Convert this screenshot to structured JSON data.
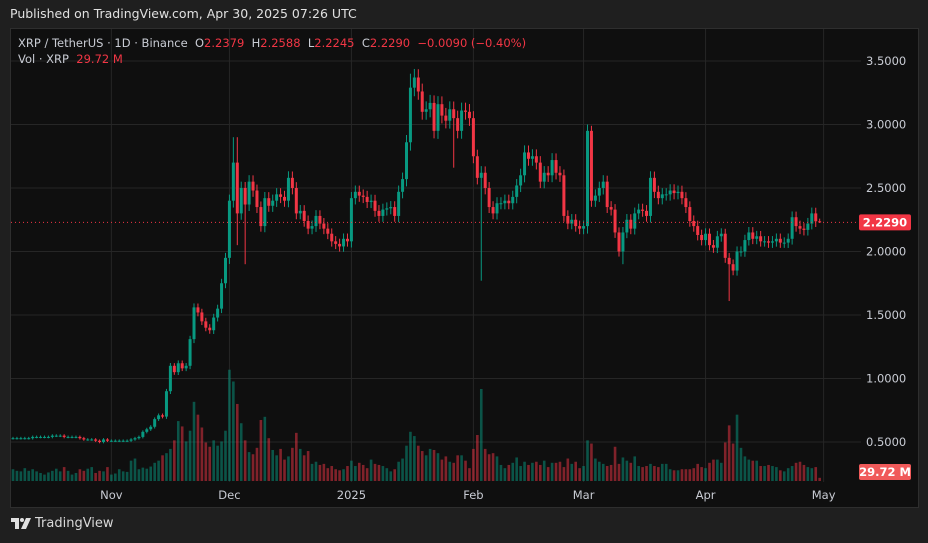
{
  "published": "Published on TradingView.com, Apr 30, 2025 07:26 UTC",
  "legend": {
    "symbol": "XRP / TetherUS · 1D · Binance",
    "o_label": "O",
    "open": "2.2379",
    "h_label": "H",
    "high": "2.2588",
    "l_label": "L",
    "low": "2.2245",
    "c_label": "C",
    "close": "2.2290",
    "change": "−0.0090 (−0.40%)",
    "vol_label": "Vol · XRP",
    "vol_value": "29.72 M"
  },
  "footer": {
    "brand": "TradingView"
  },
  "colors": {
    "up": "#089981",
    "down": "#f23645",
    "background": "#0f0f0f",
    "grid": "#262626"
  },
  "chart_data": {
    "type": "candlestick",
    "interval": "1D",
    "start_date": "2024-10-07",
    "ylim": [
      0.3,
      3.7
    ],
    "y_ticks": [
      "0.5000",
      "1.0000",
      "1.5000",
      "2.0000",
      "2.5000",
      "3.0000",
      "3.5000"
    ],
    "x_ticks": [
      {
        "label": "Nov",
        "date": "2024-11-01"
      },
      {
        "label": "Dec",
        "date": "2024-12-01"
      },
      {
        "label": "2025",
        "date": "2025-01-01"
      },
      {
        "label": "Feb",
        "date": "2025-02-01"
      },
      {
        "label": "Mar",
        "date": "2025-03-01"
      },
      {
        "label": "Apr",
        "date": "2025-04-01"
      },
      {
        "label": "May",
        "date": "2025-05-01"
      }
    ],
    "grid": true,
    "close": [
      0.53,
      0.53,
      0.53,
      0.53,
      0.53,
      0.54,
      0.54,
      0.54,
      0.54,
      0.54,
      0.55,
      0.55,
      0.55,
      0.54,
      0.54,
      0.54,
      0.54,
      0.53,
      0.52,
      0.52,
      0.52,
      0.51,
      0.5,
      0.52,
      0.51,
      0.51,
      0.51,
      0.51,
      0.51,
      0.51,
      0.52,
      0.53,
      0.54,
      0.58,
      0.6,
      0.62,
      0.68,
      0.71,
      0.7,
      0.9,
      1.1,
      1.05,
      1.12,
      1.08,
      1.1,
      1.31,
      1.56,
      1.52,
      1.45,
      1.4,
      1.38,
      1.48,
      1.55,
      1.75,
      1.95,
      2.4,
      2.7,
      2.3,
      2.5,
      2.37,
      2.55,
      2.48,
      2.35,
      2.2,
      2.42,
      2.36,
      2.4,
      2.45,
      2.43,
      2.4,
      2.58,
      2.5,
      2.3,
      2.32,
      2.24,
      2.18,
      2.2,
      2.28,
      2.22,
      2.18,
      2.14,
      2.08,
      2.06,
      2.04,
      2.1,
      2.08,
      2.42,
      2.47,
      2.44,
      2.43,
      2.39,
      2.4,
      2.32,
      2.28,
      2.33,
      2.34,
      2.35,
      2.28,
      2.47,
      2.57,
      2.86,
      3.29,
      3.37,
      3.26,
      3.1,
      3.12,
      3.17,
      2.95,
      3.16,
      3.07,
      3.03,
      3.12,
      3.05,
      2.95,
      3.11,
      3.1,
      3.05,
      2.75,
      2.58,
      2.62,
      2.5,
      2.35,
      2.3,
      2.38,
      2.38,
      2.4,
      2.38,
      2.43,
      2.52,
      2.6,
      2.78,
      2.73,
      2.75,
      2.7,
      2.55,
      2.62,
      2.6,
      2.72,
      2.62,
      2.6,
      2.28,
      2.22,
      2.25,
      2.2,
      2.18,
      2.2,
      2.95,
      2.4,
      2.44,
      2.5,
      2.55,
      2.35,
      2.33,
      2.15,
      2.0,
      2.15,
      2.25,
      2.18,
      2.3,
      2.33,
      2.32,
      2.28,
      2.58,
      2.47,
      2.42,
      2.45,
      2.45,
      2.48,
      2.46,
      2.47,
      2.42,
      2.35,
      2.24,
      2.2,
      2.13,
      2.09,
      2.14,
      2.05,
      2.03,
      2.12,
      2.14,
      1.95,
      1.9,
      1.85,
      2.0,
      2.0,
      2.09,
      2.15,
      2.1,
      2.12,
      2.08,
      2.08,
      2.07,
      2.08,
      2.1,
      2.07,
      2.07,
      2.1,
      2.27,
      2.2,
      2.18,
      2.17,
      2.22,
      2.3,
      2.2379,
      2.229
    ],
    "extremes": [
      {
        "date": "2024-12-02",
        "high": 2.9
      },
      {
        "date": "2024-12-03",
        "high": 2.9,
        "low": 2.05
      },
      {
        "date": "2024-12-05",
        "low": 1.9
      },
      {
        "date": "2025-01-16",
        "high": 3.4
      },
      {
        "date": "2025-01-27",
        "low": 2.66
      },
      {
        "date": "2025-02-03",
        "low": 1.77
      },
      {
        "date": "2025-03-02",
        "high": 3.0
      },
      {
        "date": "2025-03-03",
        "high": 2.99
      },
      {
        "date": "2025-03-11",
        "low": 1.9
      },
      {
        "date": "2025-04-07",
        "low": 1.61
      },
      {
        "date": "2025-04-30",
        "high": 2.2588,
        "low": 2.2245
      }
    ],
    "volume_millions": [
      110,
      95,
      90,
      120,
      95,
      110,
      90,
      75,
      60,
      80,
      95,
      115,
      90,
      130,
      95,
      60,
      75,
      110,
      95,
      115,
      130,
      75,
      95,
      90,
      130,
      60,
      70,
      110,
      90,
      85,
      190,
      210,
      110,
      125,
      115,
      135,
      170,
      190,
      240,
      260,
      300,
      380,
      560,
      510,
      370,
      470,
      740,
      620,
      500,
      360,
      320,
      380,
      330,
      370,
      470,
      1040,
      930,
      720,
      540,
      380,
      270,
      250,
      310,
      570,
      600,
      400,
      290,
      240,
      300,
      200,
      230,
      310,
      450,
      300,
      240,
      280,
      160,
      180,
      150,
      160,
      120,
      140,
      110,
      100,
      110,
      140,
      190,
      140,
      170,
      150,
      120,
      200,
      160,
      150,
      140,
      120,
      90,
      110,
      180,
      210,
      330,
      460,
      420,
      330,
      280,
      240,
      300,
      290,
      260,
      200,
      230,
      180,
      170,
      240,
      240,
      190,
      120,
      300,
      430,
      860,
      300,
      250,
      260,
      230,
      150,
      120,
      150,
      170,
      220,
      140,
      180,
      150,
      170,
      180,
      150,
      190,
      130,
      170,
      170,
      180,
      130,
      210,
      160,
      180,
      120,
      140,
      380,
      350,
      210,
      180,
      160,
      140,
      150,
      320,
      160,
      220,
      190,
      170,
      230,
      140,
      130,
      140,
      160,
      140,
      130,
      160,
      160,
      110,
      100,
      100,
      110,
      110,
      110,
      120,
      160,
      130,
      120,
      170,
      200,
      200,
      170,
      360,
      520,
      350,
      620,
      310,
      230,
      200,
      190,
      190,
      140,
      140,
      150,
      140,
      130,
      100,
      90,
      120,
      140,
      170,
      180,
      150,
      130,
      120,
      130,
      29.72
    ],
    "last_price_label": "2.2290",
    "last_volume_label": "29.72 M"
  }
}
